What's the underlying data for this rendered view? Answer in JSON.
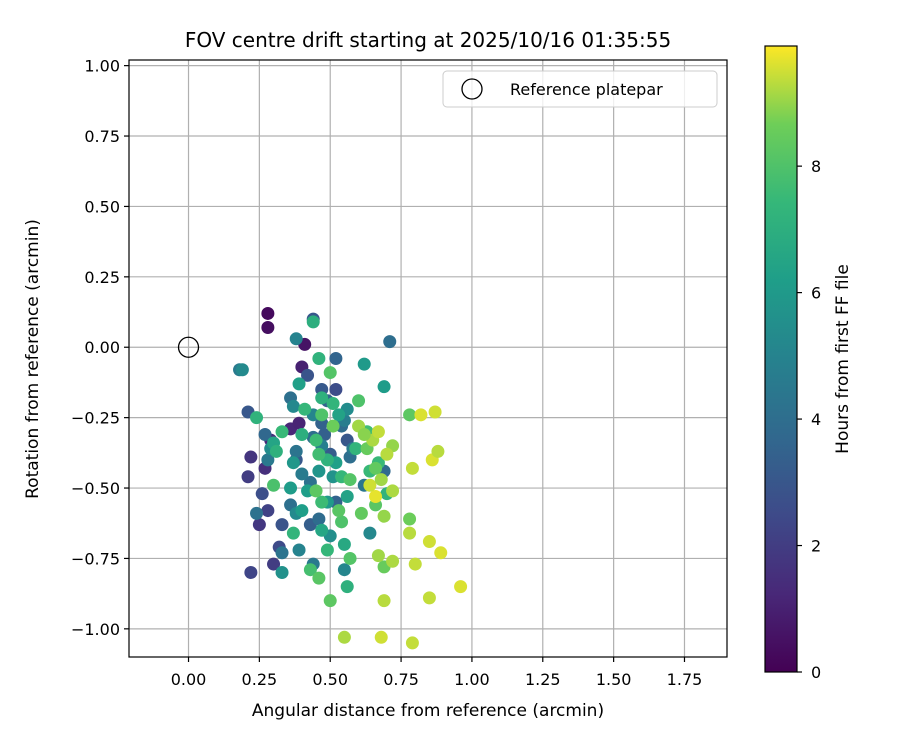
{
  "chart_data": {
    "type": "scatter",
    "title": "FOV centre drift starting at 2025/10/16 01:35:55",
    "xlabel": "Angular distance from reference (arcmin)",
    "ylabel": "Rotation from reference (arcmin)",
    "xlim": [
      -0.21,
      1.9
    ],
    "ylim": [
      -1.1,
      1.02
    ],
    "xticks": [
      0.0,
      0.25,
      0.5,
      0.75,
      1.0,
      1.25,
      1.5,
      1.75
    ],
    "xtick_labels": [
      "0.00",
      "0.25",
      "0.50",
      "0.75",
      "1.00",
      "1.25",
      "1.50",
      "1.75"
    ],
    "yticks": [
      1.0,
      0.75,
      0.5,
      0.25,
      0.0,
      -0.25,
      -0.5,
      -0.75,
      -1.0
    ],
    "ytick_labels": [
      "1.00",
      "0.75",
      "0.50",
      "0.25",
      "0.00",
      "−0.25",
      "−0.50",
      "−0.75",
      "−1.00"
    ],
    "grid": true,
    "legend": {
      "position": "top-right",
      "entries": [
        {
          "label": "Reference platepar",
          "marker": "open-circle"
        }
      ]
    },
    "reference_point": {
      "x": 0.0,
      "y": 0.0
    },
    "colorbar": {
      "label": "Hours from first FF file",
      "range": [
        0,
        9.9
      ],
      "ticks": [
        0,
        2,
        4,
        6,
        8
      ],
      "tick_labels": [
        "0",
        "2",
        "4",
        "6",
        "8"
      ],
      "colormap": "viridis"
    },
    "points": [
      {
        "x": 0.28,
        "y": 0.12,
        "c": 0.3
      },
      {
        "x": 0.28,
        "y": 0.07,
        "c": 0.4
      },
      {
        "x": 0.41,
        "y": 0.01,
        "c": 0.6
      },
      {
        "x": 0.4,
        "y": -0.07,
        "c": 1.0
      },
      {
        "x": 0.36,
        "y": -0.29,
        "c": 1.2
      },
      {
        "x": 0.29,
        "y": -0.33,
        "c": 1.3
      },
      {
        "x": 0.39,
        "y": -0.27,
        "c": 1.1
      },
      {
        "x": 0.27,
        "y": -0.43,
        "c": 1.5
      },
      {
        "x": 0.22,
        "y": -0.39,
        "c": 1.7
      },
      {
        "x": 0.21,
        "y": -0.46,
        "c": 2.0
      },
      {
        "x": 0.25,
        "y": -0.63,
        "c": 1.8
      },
      {
        "x": 0.28,
        "y": -0.58,
        "c": 2.2
      },
      {
        "x": 0.3,
        "y": -0.77,
        "c": 2.0
      },
      {
        "x": 0.22,
        "y": -0.8,
        "c": 2.3
      },
      {
        "x": 0.32,
        "y": -0.71,
        "c": 2.5
      },
      {
        "x": 0.26,
        "y": -0.52,
        "c": 2.7
      },
      {
        "x": 0.44,
        "y": 0.1,
        "c": 3.0
      },
      {
        "x": 0.42,
        "y": -0.1,
        "c": 2.9
      },
      {
        "x": 0.47,
        "y": -0.15,
        "c": 3.1
      },
      {
        "x": 0.52,
        "y": -0.15,
        "c": 2.6
      },
      {
        "x": 0.33,
        "y": -0.63,
        "c": 2.9
      },
      {
        "x": 0.38,
        "y": -0.4,
        "c": 3.1
      },
      {
        "x": 0.21,
        "y": -0.23,
        "c": 3.0
      },
      {
        "x": 0.48,
        "y": -0.31,
        "c": 3.4
      },
      {
        "x": 0.5,
        "y": -0.38,
        "c": 3.2
      },
      {
        "x": 0.43,
        "y": -0.63,
        "c": 3.3
      },
      {
        "x": 0.52,
        "y": -0.55,
        "c": 3.5
      },
      {
        "x": 0.56,
        "y": -0.33,
        "c": 3.0
      },
      {
        "x": 0.52,
        "y": -0.04,
        "c": 3.6
      },
      {
        "x": 0.71,
        "y": 0.02,
        "c": 4.0
      },
      {
        "x": 0.69,
        "y": -0.44,
        "c": 3.8
      },
      {
        "x": 0.46,
        "y": -0.61,
        "c": 3.9
      },
      {
        "x": 0.36,
        "y": -0.56,
        "c": 4.1
      },
      {
        "x": 0.43,
        "y": -0.48,
        "c": 4.2
      },
      {
        "x": 0.28,
        "y": -0.4,
        "c": 4.5
      },
      {
        "x": 0.38,
        "y": -0.37,
        "c": 4.3
      },
      {
        "x": 0.57,
        "y": -0.39,
        "c": 4.0
      },
      {
        "x": 0.62,
        "y": -0.49,
        "c": 4.4
      },
      {
        "x": 0.4,
        "y": -0.45,
        "c": 4.6
      },
      {
        "x": 0.27,
        "y": -0.31,
        "c": 3.7
      },
      {
        "x": 0.47,
        "y": -0.27,
        "c": 3.5
      },
      {
        "x": 0.33,
        "y": -0.73,
        "c": 4.3
      },
      {
        "x": 0.54,
        "y": -0.28,
        "c": 3.9
      },
      {
        "x": 0.36,
        "y": -0.18,
        "c": 4.1
      },
      {
        "x": 0.44,
        "y": -0.32,
        "c": 4.0
      },
      {
        "x": 0.49,
        "y": -0.19,
        "c": 3.6
      },
      {
        "x": 0.18,
        "y": -0.08,
        "c": 4.6
      },
      {
        "x": 0.24,
        "y": -0.59,
        "c": 4.2
      },
      {
        "x": 0.47,
        "y": -0.35,
        "c": 4.8
      },
      {
        "x": 0.58,
        "y": -0.36,
        "c": 4.5
      },
      {
        "x": 0.55,
        "y": -0.26,
        "c": 4.7
      },
      {
        "x": 0.44,
        "y": -0.77,
        "c": 4.5
      },
      {
        "x": 0.38,
        "y": 0.03,
        "c": 5.0
      },
      {
        "x": 0.19,
        "y": -0.08,
        "c": 5.3
      },
      {
        "x": 0.37,
        "y": -0.21,
        "c": 5.2
      },
      {
        "x": 0.29,
        "y": -0.36,
        "c": 5.4
      },
      {
        "x": 0.55,
        "y": -0.79,
        "c": 5.1
      },
      {
        "x": 0.33,
        "y": -0.8,
        "c": 5.6
      },
      {
        "x": 0.38,
        "y": -0.59,
        "c": 5.3
      },
      {
        "x": 0.39,
        "y": -0.72,
        "c": 5.0
      },
      {
        "x": 0.5,
        "y": -0.67,
        "c": 5.5
      },
      {
        "x": 0.44,
        "y": -0.24,
        "c": 5.1
      },
      {
        "x": 0.51,
        "y": -0.46,
        "c": 5.7
      },
      {
        "x": 0.56,
        "y": -0.22,
        "c": 5.4
      },
      {
        "x": 0.46,
        "y": -0.44,
        "c": 5.8
      },
      {
        "x": 0.37,
        "y": -0.41,
        "c": 5.9
      },
      {
        "x": 0.64,
        "y": -0.66,
        "c": 5.2
      },
      {
        "x": 0.62,
        "y": -0.06,
        "c": 6.0
      },
      {
        "x": 0.69,
        "y": -0.14,
        "c": 6.1
      },
      {
        "x": 0.39,
        "y": -0.13,
        "c": 6.3
      },
      {
        "x": 0.42,
        "y": -0.51,
        "c": 6.2
      },
      {
        "x": 0.49,
        "y": -0.55,
        "c": 6.0
      },
      {
        "x": 0.56,
        "y": -0.53,
        "c": 6.4
      },
      {
        "x": 0.3,
        "y": -0.34,
        "c": 6.5
      },
      {
        "x": 0.36,
        "y": -0.5,
        "c": 6.1
      },
      {
        "x": 0.52,
        "y": -0.41,
        "c": 6.3
      },
      {
        "x": 0.47,
        "y": -0.65,
        "c": 6.6
      },
      {
        "x": 0.4,
        "y": -0.58,
        "c": 6.2
      },
      {
        "x": 0.53,
        "y": -0.24,
        "c": 6.4
      },
      {
        "x": 0.55,
        "y": -0.7,
        "c": 6.7
      },
      {
        "x": 0.44,
        "y": 0.09,
        "c": 7.0
      },
      {
        "x": 0.46,
        "y": -0.04,
        "c": 7.2
      },
      {
        "x": 0.47,
        "y": -0.18,
        "c": 7.1
      },
      {
        "x": 0.41,
        "y": -0.22,
        "c": 7.4
      },
      {
        "x": 0.51,
        "y": -0.2,
        "c": 7.3
      },
      {
        "x": 0.4,
        "y": -0.31,
        "c": 7.0
      },
      {
        "x": 0.45,
        "y": -0.33,
        "c": 7.6
      },
      {
        "x": 0.49,
        "y": -0.4,
        "c": 7.2
      },
      {
        "x": 0.33,
        "y": -0.3,
        "c": 7.5
      },
      {
        "x": 0.31,
        "y": -0.37,
        "c": 7.1
      },
      {
        "x": 0.54,
        "y": -0.46,
        "c": 7.4
      },
      {
        "x": 0.59,
        "y": -0.36,
        "c": 7.3
      },
      {
        "x": 0.63,
        "y": -0.3,
        "c": 7.7
      },
      {
        "x": 0.67,
        "y": -0.41,
        "c": 7.5
      },
      {
        "x": 0.7,
        "y": -0.52,
        "c": 7.2
      },
      {
        "x": 0.47,
        "y": -0.55,
        "c": 7.6
      },
      {
        "x": 0.49,
        "y": -0.72,
        "c": 7.4
      },
      {
        "x": 0.43,
        "y": -0.79,
        "c": 7.8
      },
      {
        "x": 0.56,
        "y": -0.85,
        "c": 7.1
      },
      {
        "x": 0.37,
        "y": -0.66,
        "c": 7.3
      },
      {
        "x": 0.46,
        "y": -0.38,
        "c": 7.7
      },
      {
        "x": 0.64,
        "y": -0.44,
        "c": 7.5
      },
      {
        "x": 0.24,
        "y": -0.25,
        "c": 7.2
      },
      {
        "x": 0.3,
        "y": -0.49,
        "c": 7.9
      },
      {
        "x": 0.47,
        "y": -0.24,
        "c": 8.0
      },
      {
        "x": 0.5,
        "y": -0.09,
        "c": 8.1
      },
      {
        "x": 0.46,
        "y": -0.82,
        "c": 8.2
      },
      {
        "x": 0.5,
        "y": -0.9,
        "c": 8.3
      },
      {
        "x": 0.54,
        "y": -0.62,
        "c": 8.0
      },
      {
        "x": 0.61,
        "y": -0.59,
        "c": 8.4
      },
      {
        "x": 0.57,
        "y": -0.47,
        "c": 8.1
      },
      {
        "x": 0.66,
        "y": -0.56,
        "c": 8.2
      },
      {
        "x": 0.6,
        "y": -0.19,
        "c": 8.0
      },
      {
        "x": 0.78,
        "y": -0.24,
        "c": 8.3
      },
      {
        "x": 0.63,
        "y": -0.36,
        "c": 8.5
      },
      {
        "x": 0.53,
        "y": -0.58,
        "c": 8.2
      },
      {
        "x": 0.78,
        "y": -0.61,
        "c": 8.6
      },
      {
        "x": 0.66,
        "y": -0.43,
        "c": 8.4
      },
      {
        "x": 0.57,
        "y": -0.75,
        "c": 8.1
      },
      {
        "x": 0.69,
        "y": -0.78,
        "c": 8.5
      },
      {
        "x": 0.45,
        "y": -0.51,
        "c": 8.3
      },
      {
        "x": 0.51,
        "y": -0.28,
        "c": 8.6
      },
      {
        "x": 0.55,
        "y": -1.03,
        "c": 9.2
      },
      {
        "x": 0.68,
        "y": -1.03,
        "c": 9.5
      },
      {
        "x": 0.79,
        "y": -1.05,
        "c": 9.4
      },
      {
        "x": 0.69,
        "y": -0.9,
        "c": 9.3
      },
      {
        "x": 0.85,
        "y": -0.89,
        "c": 9.4
      },
      {
        "x": 0.96,
        "y": -0.85,
        "c": 9.6
      },
      {
        "x": 0.67,
        "y": -0.74,
        "c": 9.1
      },
      {
        "x": 0.72,
        "y": -0.76,
        "c": 9.2
      },
      {
        "x": 0.8,
        "y": -0.77,
        "c": 9.4
      },
      {
        "x": 0.89,
        "y": -0.73,
        "c": 9.6
      },
      {
        "x": 0.85,
        "y": -0.69,
        "c": 9.5
      },
      {
        "x": 0.78,
        "y": -0.66,
        "c": 9.3
      },
      {
        "x": 0.69,
        "y": -0.6,
        "c": 9.0
      },
      {
        "x": 0.66,
        "y": -0.53,
        "c": 9.7
      },
      {
        "x": 0.72,
        "y": -0.51,
        "c": 9.2
      },
      {
        "x": 0.64,
        "y": -0.49,
        "c": 9.5
      },
      {
        "x": 0.68,
        "y": -0.47,
        "c": 9.1
      },
      {
        "x": 0.79,
        "y": -0.43,
        "c": 9.4
      },
      {
        "x": 0.86,
        "y": -0.4,
        "c": 9.6
      },
      {
        "x": 0.88,
        "y": -0.37,
        "c": 9.3
      },
      {
        "x": 0.72,
        "y": -0.35,
        "c": 9.0
      },
      {
        "x": 0.65,
        "y": -0.33,
        "c": 9.2
      },
      {
        "x": 0.67,
        "y": -0.3,
        "c": 9.4
      },
      {
        "x": 0.82,
        "y": -0.24,
        "c": 9.6
      },
      {
        "x": 0.87,
        "y": -0.23,
        "c": 9.5
      },
      {
        "x": 0.6,
        "y": -0.28,
        "c": 9.1
      },
      {
        "x": 0.7,
        "y": -0.38,
        "c": 9.3
      },
      {
        "x": 0.62,
        "y": -0.31,
        "c": 8.9
      }
    ]
  }
}
